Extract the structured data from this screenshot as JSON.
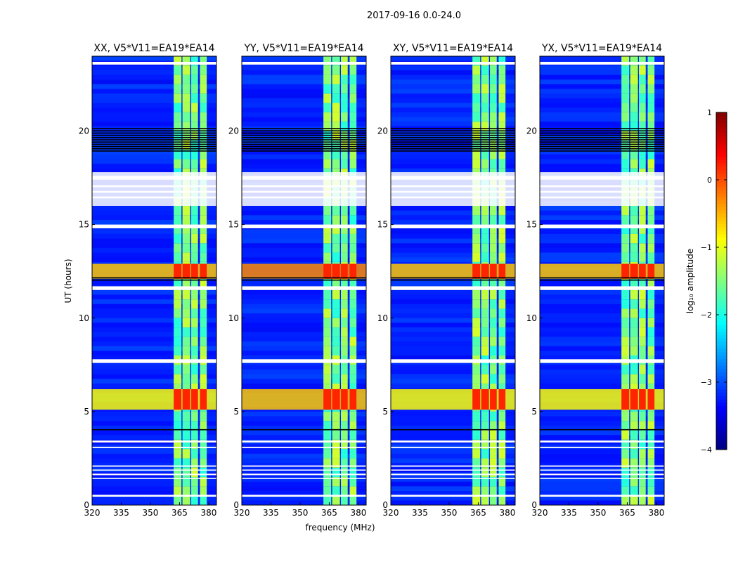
{
  "chart_data": {
    "type": "heatmap",
    "title": "2017-09-16 0.0-24.0",
    "xlabel": "frequency (MHz)",
    "ylabel": "UT (hours)",
    "xlim": [
      320,
      384
    ],
    "ylim": [
      0,
      24
    ],
    "xticks": [
      "320",
      "335",
      "350",
      "365",
      "380"
    ],
    "xtick_values": [
      320,
      335,
      350,
      365,
      380
    ],
    "yticks": [
      "0",
      "5",
      "10",
      "15",
      "20"
    ],
    "ytick_values": [
      0,
      5,
      10,
      15,
      20
    ],
    "panels": [
      {
        "title": "XX, V5*V11=EA19*EA14"
      },
      {
        "title": "YY, V5*V11=EA19*EA14"
      },
      {
        "title": "XY, V5*V11=EA19*EA14"
      },
      {
        "title": "YX, V5*V11=EA19*EA14"
      }
    ],
    "colorbar": {
      "label": "log₁₀ amplitude",
      "range": [
        -4,
        1
      ],
      "ticks": [
        "1",
        "0",
        "−1",
        "−2",
        "−3",
        "−4"
      ],
      "tick_values": [
        1,
        0,
        -1,
        -2,
        -3,
        -4
      ],
      "colormap": "jet"
    },
    "background_level": -3.2,
    "rfi_channels_mhz": [
      [
        362,
        366
      ],
      [
        366.5,
        370.5
      ],
      [
        371,
        374.5
      ],
      [
        375.5,
        379
      ]
    ],
    "rfi_channel_level": -1.7,
    "bright_time_ranges_h": [
      {
        "range": [
          12.1,
          12.9
        ],
        "level": -0.6
      },
      {
        "range": [
          5.1,
          6.2
        ],
        "level": -0.9
      }
    ],
    "bright_channel_level": 0.2,
    "flagged_ranges_h": [
      [
        23.55,
        23.7
      ],
      [
        17.4,
        17.6
      ],
      [
        17.0,
        17.1
      ],
      [
        16.7,
        16.8
      ],
      [
        16.4,
        16.5
      ],
      [
        14.8,
        15.0
      ],
      [
        11.5,
        11.7
      ],
      [
        7.6,
        7.8
      ],
      [
        3.35,
        3.45
      ],
      [
        3.05,
        3.12
      ],
      [
        2.05,
        2.12
      ],
      [
        1.85,
        1.9
      ],
      [
        1.6,
        1.68
      ],
      [
        1.4,
        1.45
      ],
      [
        0.45,
        0.55
      ]
    ],
    "dropout_ranges_h": [
      [
        18.9,
        20.2
      ],
      [
        12.0,
        12.15
      ],
      [
        4.0,
        4.1
      ]
    ]
  }
}
